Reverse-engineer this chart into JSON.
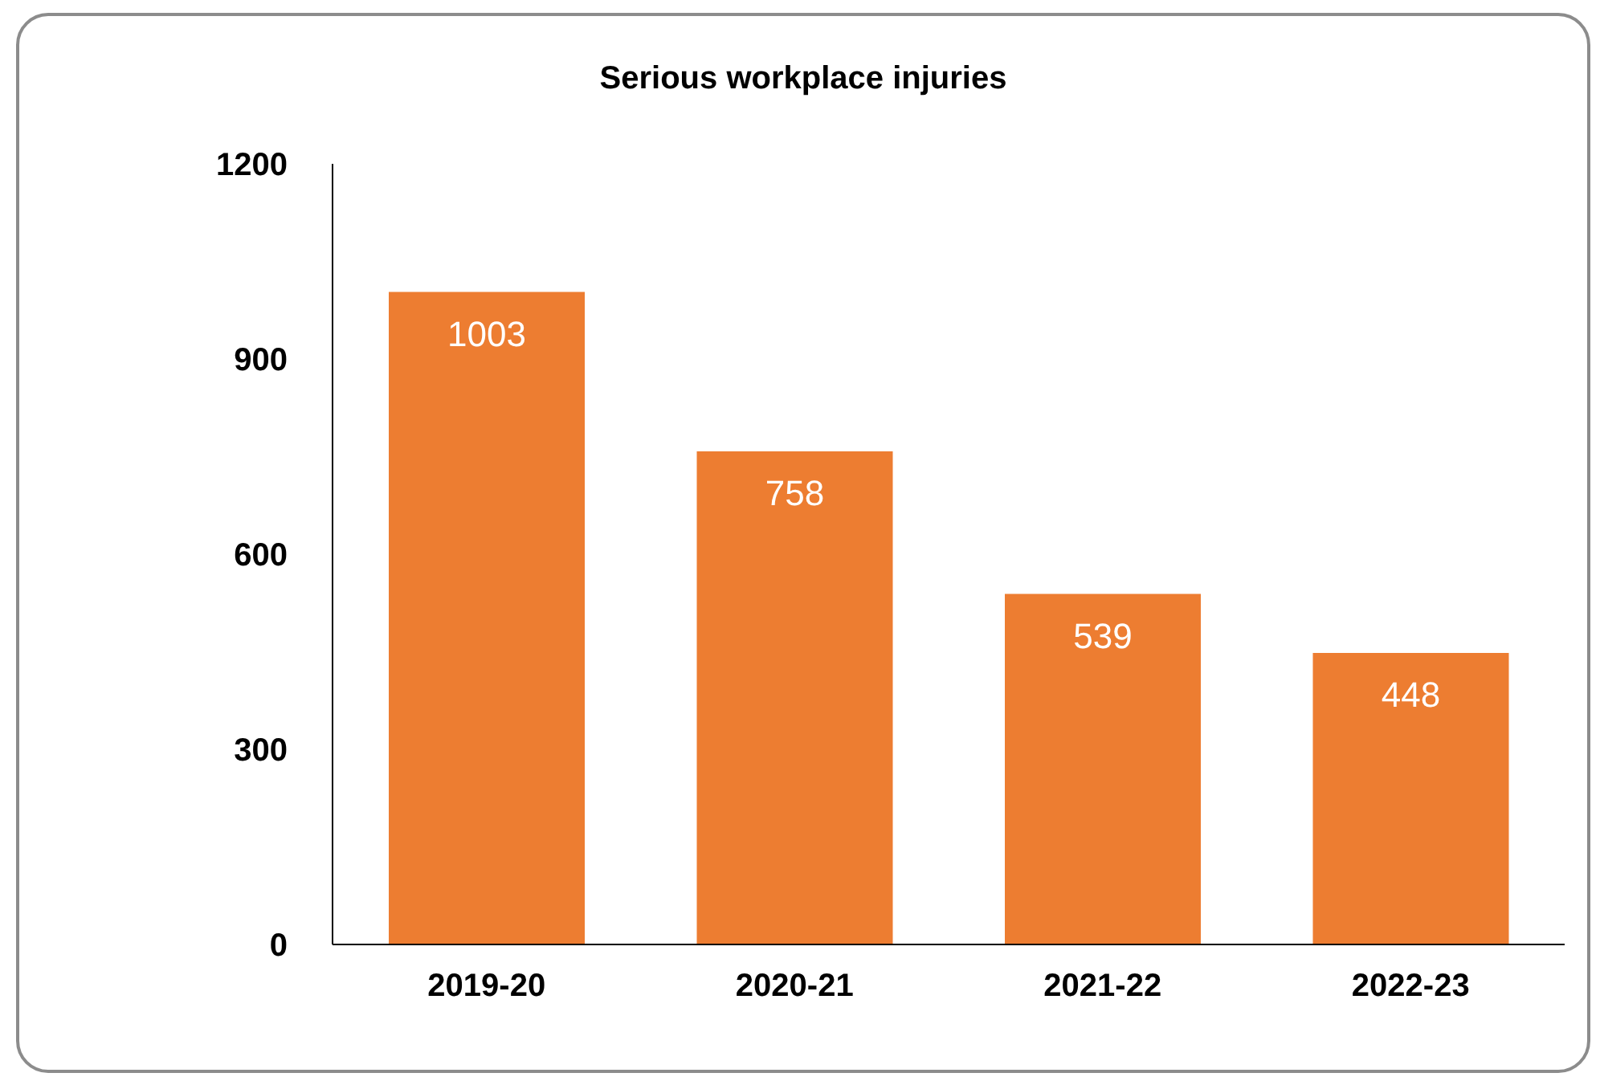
{
  "chart_data": {
    "type": "bar",
    "title": "Serious workplace injuries",
    "categories": [
      "2019-20",
      "2020-21",
      "2021-22",
      "2022-23"
    ],
    "values": [
      1003,
      758,
      539,
      448
    ],
    "color": "#ed7d31",
    "ylim": [
      0,
      1200
    ],
    "yticks": [
      0,
      300,
      600,
      900,
      1200
    ],
    "grid": false,
    "data_labels": true
  }
}
